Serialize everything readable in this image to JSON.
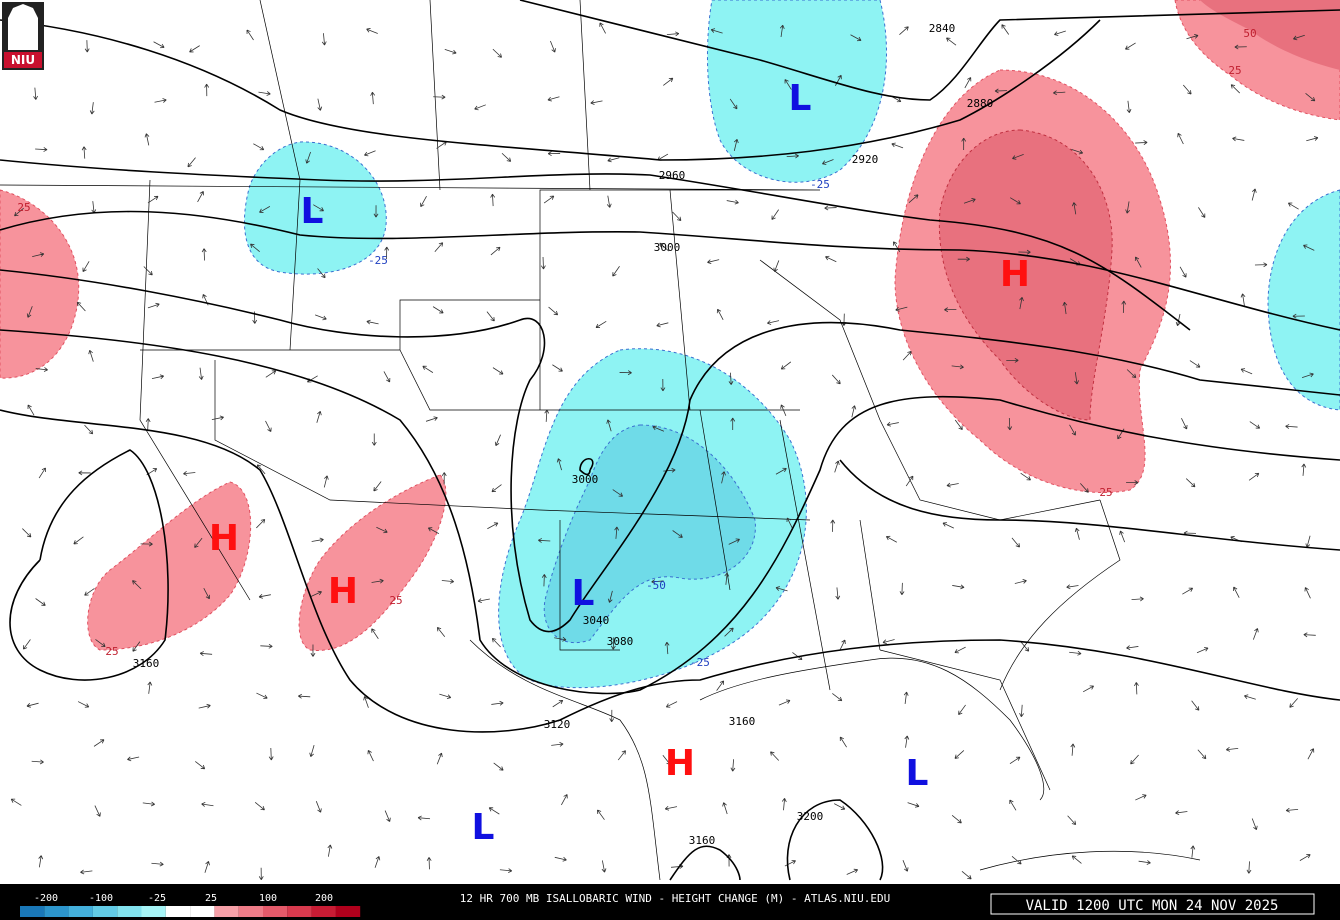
{
  "logo": "NIU",
  "map": {
    "centers": [
      "L",
      "L",
      "L",
      "L",
      "L",
      "H",
      "H",
      "H",
      "H"
    ],
    "contour_labels": [
      "2840",
      "2880",
      "2920",
      "2960",
      "3000",
      "3000",
      "3040",
      "3080",
      "3120",
      "3160",
      "3160",
      "3200",
      "3160"
    ],
    "change_labels": [
      "25",
      "-25",
      "-25",
      "25",
      "50",
      "25",
      "25",
      "-25",
      "-50",
      "25"
    ]
  },
  "footer": {
    "legend_labels": [
      "-200",
      "-100",
      "-25",
      "25",
      "100",
      "200"
    ],
    "title": "12 HR 700 MB ISALLOBARIC WIND - HEIGHT CHANGE (M) - ATLAS.NIU.EDU",
    "valid": "VALID 1200 UTC MON 24 NOV 2025"
  }
}
